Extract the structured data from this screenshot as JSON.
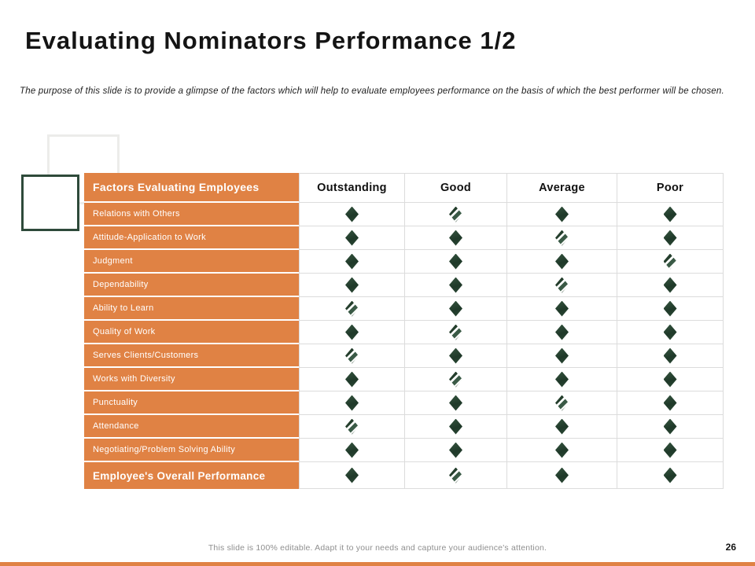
{
  "slide": {
    "title": "Evaluating Nominators Performance 1/2",
    "subtitle": "The purpose of this slide is to provide a glimpse of the factors which will help to evaluate employees performance on the basis of which the best performer will be chosen.",
    "footer_note": "This slide is 100% editable. Adapt it to your needs and capture your audience's attention.",
    "page_number": "26"
  },
  "colors": {
    "accent_orange": "#E08244",
    "diamond_dark_green": "#27422F",
    "table_border": "#DCDCDC"
  },
  "table": {
    "header": {
      "factors_label": "Factors Evaluating Employees",
      "columns": [
        "Outstanding",
        "Good",
        "Average",
        "Poor"
      ]
    },
    "rows": [
      {
        "label": "Relations with Others",
        "ratings": [
          "solid",
          "slashed",
          "solid",
          "solid"
        ],
        "bold": false
      },
      {
        "label": "Attitude-Application to Work",
        "ratings": [
          "solid",
          "solid",
          "slashed",
          "solid"
        ],
        "bold": false
      },
      {
        "label": "Judgment",
        "ratings": [
          "solid",
          "solid",
          "solid",
          "slashed"
        ],
        "bold": false
      },
      {
        "label": "Dependability",
        "ratings": [
          "solid",
          "solid",
          "slashed",
          "solid"
        ],
        "bold": false
      },
      {
        "label": "Ability to Learn",
        "ratings": [
          "slashed",
          "solid",
          "solid",
          "solid"
        ],
        "bold": false
      },
      {
        "label": "Quality of Work",
        "ratings": [
          "solid",
          "slashed",
          "solid",
          "solid"
        ],
        "bold": false
      },
      {
        "label": "Serves Clients/Customers",
        "ratings": [
          "slashed",
          "solid",
          "solid",
          "solid"
        ],
        "bold": false
      },
      {
        "label": "Works with Diversity",
        "ratings": [
          "solid",
          "slashed",
          "solid",
          "solid"
        ],
        "bold": false
      },
      {
        "label": "Punctuality",
        "ratings": [
          "solid",
          "solid",
          "slashed",
          "solid"
        ],
        "bold": false
      },
      {
        "label": "Attendance",
        "ratings": [
          "slashed",
          "solid",
          "solid",
          "solid"
        ],
        "bold": false
      },
      {
        "label": "Negotiating/Problem Solving Ability",
        "ratings": [
          "solid",
          "solid",
          "solid",
          "solid"
        ],
        "bold": false
      },
      {
        "label": "Employee's Overall Performance",
        "ratings": [
          "solid",
          "slashed",
          "solid",
          "solid"
        ],
        "bold": true
      }
    ]
  }
}
